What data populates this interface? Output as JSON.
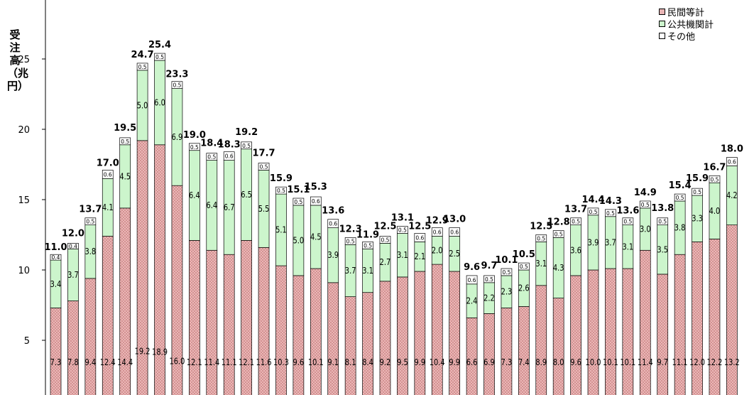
{
  "chart_data": {
    "type": "bar",
    "stacked": true,
    "ylabel": "受注高（兆円）",
    "ylim": [
      0,
      28
    ],
    "yticks": [
      5,
      10,
      15,
      20,
      25
    ],
    "legend_position": "top-right",
    "series": [
      {
        "name": "民間等計",
        "color": "#e8b4b4",
        "values": [
          7.3,
          7.8,
          9.4,
          12.4,
          14.4,
          19.2,
          18.9,
          16.0,
          12.1,
          11.4,
          11.1,
          12.1,
          11.6,
          10.3,
          9.6,
          10.1,
          9.1,
          8.1,
          8.4,
          9.2,
          9.5,
          9.9,
          10.4,
          9.9,
          6.6,
          6.9,
          7.3,
          7.4,
          8.9,
          8.0,
          9.6,
          10.0,
          10.1,
          10.1,
          11.4,
          9.7,
          11.1,
          12.0,
          12.2,
          13.2
        ]
      },
      {
        "name": "公共機関計",
        "color": "#ccf5cc",
        "values": [
          3.4,
          3.7,
          3.8,
          4.1,
          4.5,
          5.0,
          6.0,
          6.9,
          6.4,
          6.4,
          6.7,
          6.5,
          5.5,
          5.1,
          5.0,
          4.5,
          3.9,
          3.7,
          3.1,
          2.7,
          3.1,
          2.1,
          2.0,
          2.5,
          2.4,
          2.2,
          2.3,
          2.6,
          3.1,
          4.3,
          3.6,
          3.9,
          3.7,
          3.1,
          3.0,
          3.5,
          3.8,
          3.3,
          4.0,
          4.2
        ]
      },
      {
        "name": "その他",
        "color": "#ffffff",
        "values": [
          0.4,
          0.4,
          0.5,
          0.6,
          0.5,
          0.5,
          0.5,
          0.5,
          0.5,
          0.5,
          0.6,
          0.5,
          0.5,
          0.5,
          0.5,
          0.6,
          0.6,
          0.5,
          0.5,
          0.5,
          0.5,
          0.6,
          0.6,
          0.6,
          0.6,
          0.5,
          0.5,
          0.5,
          0.5,
          0.5,
          0.5,
          0.5,
          0.5,
          0.5,
          0.5,
          0.5,
          0.5,
          0.5,
          0.5,
          0.6
        ]
      }
    ],
    "totals": [
      11.0,
      12.0,
      13.7,
      17.0,
      19.5,
      24.7,
      25.4,
      23.3,
      19.0,
      18.4,
      18.3,
      19.2,
      17.7,
      15.9,
      15.1,
      15.3,
      13.6,
      12.3,
      11.9,
      12.5,
      13.1,
      12.5,
      12.9,
      13.0,
      9.6,
      9.7,
      10.1,
      10.5,
      12.5,
      12.8,
      13.7,
      14.4,
      14.3,
      13.6,
      14.9,
      13.8,
      15.4,
      15.9,
      16.7,
      18.0
    ]
  }
}
